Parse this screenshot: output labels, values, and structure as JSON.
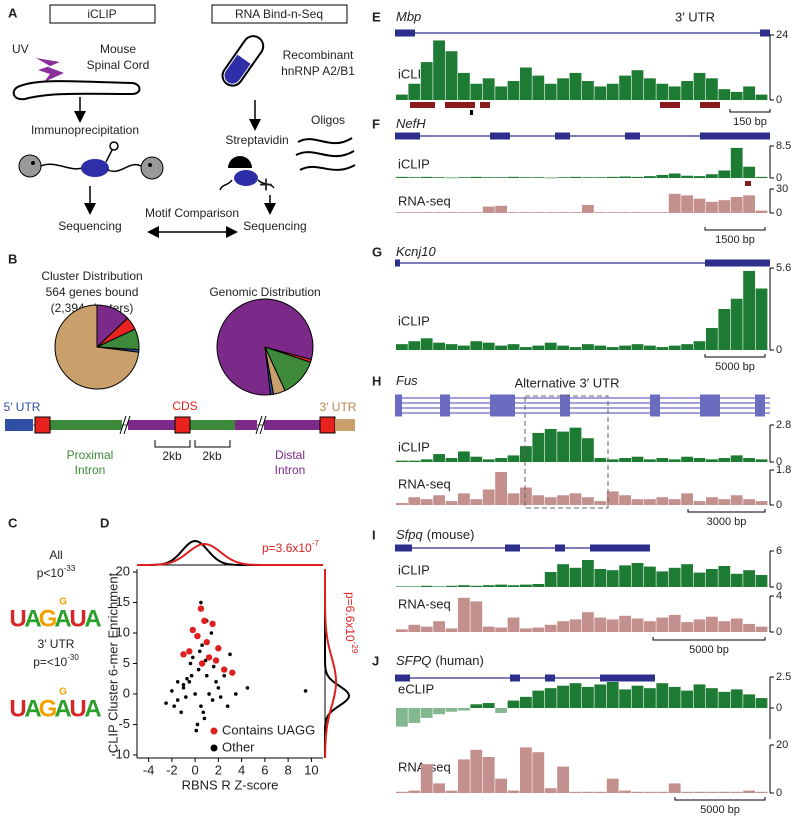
{
  "panel_a": {
    "letter": "A",
    "left_box": "iCLIP",
    "right_box": "RNA Bind-n-Seq",
    "uv": "UV",
    "tissue": [
      "Mouse",
      "Spinal Cord"
    ],
    "protein": [
      "Recombinant",
      "hnRNP A2/B1"
    ],
    "ip": "Immunoprecipitation",
    "streptavidin": "Streptavidin",
    "oligos": "Oligos",
    "plus": "+",
    "seq_left": "Sequencing",
    "seq_right": "Sequencing",
    "comparison": "Motif Comparison"
  },
  "panel_b": {
    "letter": "B",
    "pies": [
      {
        "title": [
          "Cluster Distribution",
          "564 genes bound",
          "(2,394 clusters)"
        ],
        "values": [
          13,
          5,
          8,
          1,
          73
        ],
        "colors": [
          "#7b2a8a",
          "#e8231f",
          "#3d8a3a",
          "#2e4fa3",
          "#c9a06b"
        ]
      },
      {
        "title": [
          "Genomic Distribution"
        ],
        "values": [
          1,
          13,
          4,
          1,
          81
        ],
        "colors": [
          "#e8231f",
          "#3d8a3a",
          "#c9a06b",
          "#2e4fa3",
          "#7b2a8a"
        ]
      }
    ],
    "gene_labels": {
      "utr5": "5′ UTR",
      "cds": "CDS",
      "utr3": "3′ UTR",
      "proximal": [
        "Proximal",
        "Intron"
      ],
      "distal": [
        "Distal",
        "Intron"
      ],
      "spacing": [
        "2kb",
        "2kb"
      ]
    }
  },
  "panel_c": {
    "letter": "C",
    "motifs": [
      {
        "label": "All",
        "p": "p<10",
        "exp": "-33",
        "logo": [
          [
            "U"
          ],
          [
            "A"
          ],
          [
            "G"
          ],
          [
            "G",
            "A"
          ],
          [
            "U"
          ],
          [
            "A"
          ]
        ]
      },
      {
        "label": "3′ UTR",
        "p": "p=<10",
        "exp": "-30",
        "logo": [
          [
            "U"
          ],
          [
            "A"
          ],
          [
            "G"
          ],
          [
            "G",
            "A"
          ],
          [
            "U"
          ],
          [
            "A"
          ]
        ]
      }
    ]
  },
  "chart_data": {
    "type": "scatter",
    "letter": "D",
    "x_label": "RBNS R Z-score",
    "y_label": "CLIP Cluster 6-mer Enrichment",
    "xlim": [
      -5,
      11
    ],
    "ylim": [
      -10.5,
      20.5
    ],
    "xticks": [
      -4,
      -2,
      0,
      2,
      4,
      6,
      8,
      10
    ],
    "yticks": [
      -10,
      -5,
      0,
      5,
      10,
      15,
      20
    ],
    "p_top": {
      "text": "p=3.6x10",
      "exp": "-7"
    },
    "p_right": {
      "text": "p=6.6x10",
      "exp": "-29"
    },
    "series": [
      {
        "name": "Other",
        "color": "#000000",
        "x": [
          -1.5,
          -1,
          -0.5,
          0,
          0.5,
          1,
          1.5,
          -2,
          2,
          -1.2,
          0.3,
          0.8,
          -0.7,
          1.2,
          -0.2,
          0.6,
          -1.8,
          1.8,
          2.5,
          -2.5,
          0.1,
          -0.4,
          0.9,
          1.4,
          -1,
          0.2,
          3,
          1,
          -0.8,
          0.4,
          2.2,
          -1.5,
          0.7,
          1.6,
          4.5,
          9.5,
          2.8,
          3.5,
          -0.3,
          0.5
        ],
        "values": [
          -1,
          1,
          2,
          0,
          -2,
          3,
          -1,
          0.5,
          1,
          -3,
          4,
          -4,
          2.5,
          0,
          6,
          8,
          -2,
          2,
          3,
          -1.5,
          -6,
          5,
          5.5,
          10,
          1.5,
          -5,
          6.5,
          12,
          -0.5,
          7,
          -0.5,
          2,
          -3,
          4.5,
          1,
          0.5,
          -2,
          0,
          3,
          15
        ]
      },
      {
        "name": "Contains UAGG",
        "color": "#e02020",
        "x": [
          0.2,
          0.8,
          1.5,
          -0.5,
          0.5,
          2.5,
          1,
          3.2,
          -0.2,
          1.2,
          0.6,
          2,
          -1,
          1.8
        ],
        "values": [
          9.5,
          12,
          11.5,
          7,
          14,
          4,
          8.5,
          3.5,
          10.5,
          6,
          5,
          7.5,
          6.5,
          5.5
        ]
      }
    ]
  },
  "tracks": [
    {
      "letter": "E",
      "gene": "Mbp",
      "annotation": "3′ UTR",
      "scale_bar": "150 bp",
      "tracks": [
        {
          "label": "iCLIP",
          "color": "#1e7b34",
          "ylim": [
            0,
            24
          ],
          "yticks": [
            0,
            24
          ],
          "values": [
            2,
            6,
            14,
            22,
            18,
            10,
            6,
            8,
            5,
            7,
            12,
            9,
            6,
            8,
            10,
            7,
            5,
            6,
            9,
            11,
            8,
            6,
            5,
            7,
            10,
            8,
            4,
            3,
            5,
            2
          ]
        }
      ]
    },
    {
      "letter": "F",
      "gene": "NefH",
      "scale_bar": "1500 bp",
      "tracks": [
        {
          "label": "iCLIP",
          "color": "#1e7b34",
          "ylim": [
            0,
            8.5
          ],
          "yticks": [
            0,
            8.5
          ],
          "values": [
            0.3,
            0.2,
            0.3,
            0.2,
            0.1,
            0.2,
            0.3,
            0.2,
            0.2,
            0.3,
            0.2,
            0.2,
            0.1,
            0.2,
            0.3,
            0.2,
            0.2,
            0.3,
            0.4,
            0.3,
            0.5,
            0.8,
            1.2,
            0.6,
            0.5,
            1,
            2,
            8,
            3,
            0.3
          ]
        },
        {
          "label": "RNA-seq",
          "color": "#c4908e",
          "ylim": [
            0,
            30
          ],
          "yticks": [
            0,
            30
          ],
          "values": [
            1,
            1,
            1,
            1,
            1,
            1,
            1,
            8,
            9,
            1,
            1,
            1,
            1,
            1,
            1,
            10,
            1,
            1,
            1,
            1,
            1,
            1,
            24,
            22,
            18,
            14,
            16,
            20,
            22,
            3
          ]
        }
      ]
    },
    {
      "letter": "G",
      "gene": "Kcnj10",
      "scale_bar": "5000 bp",
      "tracks": [
        {
          "label": "iCLIP",
          "color": "#1e7b34",
          "ylim": [
            0,
            5.6
          ],
          "yticks": [
            0,
            5.6
          ],
          "values": [
            0.4,
            0.6,
            0.8,
            0.5,
            0.4,
            0.3,
            0.6,
            0.5,
            0.3,
            0.4,
            0.2,
            0.3,
            0.5,
            0.3,
            0.2,
            0.4,
            0.3,
            0.2,
            0.3,
            0.4,
            0.3,
            0.2,
            0.3,
            0.4,
            0.6,
            1.5,
            2.8,
            3.5,
            5.4,
            4.2
          ]
        }
      ]
    },
    {
      "letter": "H",
      "gene": "Fus",
      "annotation": "Alternative 3′ UTR",
      "scale_bar": "3000 bp",
      "tracks": [
        {
          "label": "iCLIP",
          "color": "#1e7b34",
          "ylim": [
            0,
            2.8
          ],
          "yticks": [
            0,
            2.8
          ],
          "values": [
            0.1,
            0.1,
            0.2,
            0.6,
            0.3,
            0.8,
            0.4,
            0.2,
            0.3,
            0.5,
            1.2,
            2.2,
            2.5,
            2.3,
            2.6,
            1.8,
            0.3,
            0.2,
            0.3,
            0.4,
            0.2,
            0.3,
            0.2,
            0.4,
            0.3,
            0.2,
            0.3,
            0.5,
            0.3,
            0.2
          ]
        },
        {
          "label": "RNA-seq",
          "color": "#c4908e",
          "ylim": [
            0,
            1.8
          ],
          "yticks": [
            0,
            1.8
          ],
          "values": [
            0.1,
            0.4,
            0.3,
            0.5,
            0.2,
            0.6,
            0.3,
            0.8,
            1.7,
            0.6,
            0.9,
            0.5,
            0.4,
            0.5,
            0.6,
            0.4,
            0.2,
            0.7,
            0.5,
            0.3,
            0.3,
            0.4,
            0.3,
            0.6,
            0.2,
            0.4,
            0.3,
            0.5,
            0.3,
            0.2
          ]
        }
      ]
    },
    {
      "letter": "I",
      "gene": "Sfpq",
      "species": "(mouse)",
      "scale_bar": "5000 bp",
      "tracks": [
        {
          "label": "iCLIP",
          "color": "#1e7b34",
          "ylim": [
            0,
            6
          ],
          "yticks": [
            0,
            6
          ],
          "values": [
            0.1,
            0.1,
            0.2,
            0.1,
            0.2,
            0.3,
            0.2,
            0.3,
            0.4,
            0.3,
            0.4,
            0.5,
            2.5,
            3.8,
            3.2,
            4.5,
            3,
            2.8,
            3.6,
            4,
            3.4,
            2.6,
            3.2,
            3.8,
            2.4,
            3,
            3.5,
            2.2,
            2.8,
            2
          ]
        },
        {
          "label": "RNA-seq",
          "color": "#c4908e",
          "ylim": [
            0,
            4
          ],
          "yticks": [
            0,
            4
          ],
          "values": [
            0.3,
            0.8,
            0.6,
            1.2,
            0.4,
            3.8,
            3.4,
            0.6,
            0.5,
            1.6,
            0.4,
            0.5,
            0.8,
            1.2,
            1.4,
            2.2,
            1.6,
            1.4,
            1.8,
            1.5,
            1.2,
            1.6,
            1.9,
            1.1,
            1.4,
            1.7,
            1.2,
            1.5,
            0.9,
            0.6
          ]
        }
      ]
    },
    {
      "letter": "J",
      "gene": "SFPQ",
      "species": "(human)",
      "scale_bar": "5000 bp",
      "tracks": [
        {
          "label": "eCLIP",
          "color": "#1e7b34",
          "ylim": [
            -2.5,
            2.5
          ],
          "yticks": [
            0,
            2.5
          ],
          "values": [
            -1.5,
            -1.2,
            -0.8,
            -0.5,
            -0.3,
            -0.2,
            0.3,
            0.4,
            -0.4,
            0.6,
            0.9,
            1.4,
            1.6,
            1.8,
            2,
            1.7,
            1.9,
            2.1,
            1.5,
            1.8,
            1.6,
            2.0,
            1.7,
            1.4,
            1.9,
            1.6,
            1.3,
            1.5,
            1.1,
            0.8
          ]
        },
        {
          "label": "RNA-seq",
          "color": "#c4908e",
          "ylim": [
            0,
            20
          ],
          "yticks": [
            0,
            20
          ],
          "values": [
            0.5,
            1,
            12,
            4,
            1,
            14,
            18,
            15,
            6,
            1,
            19,
            17,
            2,
            11,
            0.5,
            0.5,
            0.5,
            6,
            1,
            0.5,
            0.5,
            0.5,
            4,
            0.5,
            0.5,
            0.5,
            0.5,
            0.5,
            1,
            0.5
          ]
        }
      ]
    }
  ]
}
